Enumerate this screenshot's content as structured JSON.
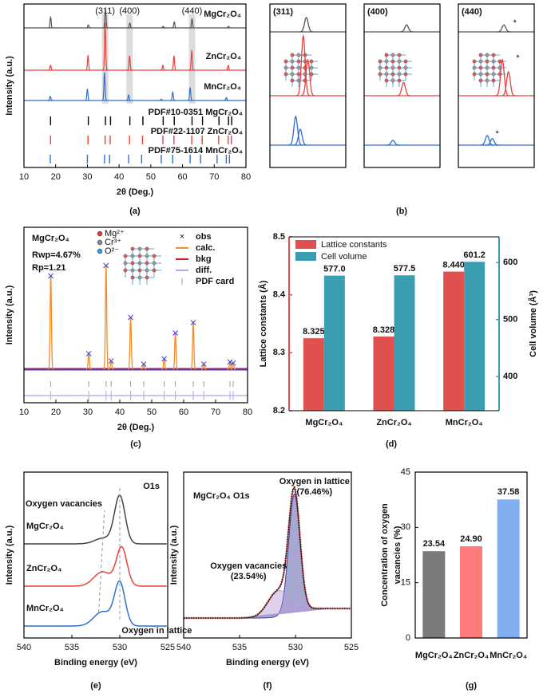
{
  "chart_data": [
    {
      "type": "xrd",
      "panel": "(a)",
      "xlabel": "2θ (Deg.)",
      "ylabel": "Intensity (a.u.)",
      "xlim": [
        10,
        80
      ],
      "xticks": [
        10,
        20,
        30,
        40,
        50,
        60,
        70,
        80
      ],
      "highlights": [
        {
          "label": "(311)",
          "x": 35.6
        },
        {
          "label": "(400)",
          "x": 43.3
        },
        {
          "label": "(440)",
          "x": 63.0
        }
      ],
      "series": [
        {
          "name": "MgCr₂O₄",
          "color": "#555555",
          "x": [
            18.4,
            30.3,
            35.7,
            43.4,
            53.9,
            57.4,
            63.0,
            74.5
          ],
          "values": [
            0.55,
            0.15,
            1,
            0.25,
            0.08,
            0.3,
            0.45,
            0.08
          ]
        },
        {
          "name": "ZnCr₂O₄",
          "color": "#e8413e",
          "x": [
            18.4,
            30.2,
            35.6,
            43.3,
            53.8,
            57.3,
            62.9,
            74.4
          ],
          "values": [
            0.1,
            0.3,
            1,
            0.3,
            0.1,
            0.3,
            0.4,
            0.1
          ]
        },
        {
          "name": "MnCr₂O₄",
          "color": "#2f6fd0",
          "x": [
            18.3,
            30.0,
            35.4,
            43.0,
            53.3,
            56.9,
            62.4,
            73.8
          ],
          "values": [
            0.15,
            0.4,
            1,
            0.2,
            0.05,
            0.3,
            0.45,
            0.1
          ]
        }
      ],
      "references": [
        {
          "name": "PDF#10-0351 MgCr₂O₄",
          "color": "#000000",
          "x": [
            18.4,
            30.3,
            35.7,
            37.3,
            43.4,
            47.5,
            53.9,
            57.4,
            63.0,
            66.3,
            71.5,
            74.5,
            75.5
          ]
        },
        {
          "name": "PDF#22-1107 ZnCr₂O₄",
          "color": "#e8413e",
          "x": [
            18.4,
            30.2,
            35.6,
            37.2,
            43.3,
            47.4,
            53.8,
            57.3,
            62.9,
            66.2,
            71.4,
            74.4,
            75.4
          ]
        },
        {
          "name": "PDF#75-1614 MnCr₂O₄",
          "color": "#2f6fd0",
          "x": [
            18.3,
            30.0,
            35.4,
            37.0,
            43.0,
            47.1,
            53.3,
            56.9,
            62.4,
            65.7,
            70.9,
            73.8,
            74.8
          ]
        }
      ]
    },
    {
      "type": "xrd-zoom",
      "panel": "(b)",
      "subplots": [
        {
          "label": "(311)",
          "xlim": [
            34.5,
            37
          ],
          "series": [
            {
              "name": "MgCr₂O₄",
              "color": "#555555",
              "x": [
                35.7
              ],
              "values": [
                0.45
              ]
            },
            {
              "name": "ZnCr₂O₄",
              "color": "#e8413e",
              "x": [
                35.6,
                35.75
              ],
              "values": [
                1,
                0.6
              ]
            },
            {
              "name": "MnCr₂O₄",
              "color": "#2f6fd0",
              "x": [
                35.35,
                35.5
              ],
              "values": [
                0.9,
                0.5
              ]
            }
          ]
        },
        {
          "label": "(400)",
          "xlim": [
            42,
            44.5
          ],
          "series": [
            {
              "name": "MgCr₂O₄",
              "color": "#555555",
              "x": [
                43.4
              ],
              "values": [
                0.22
              ]
            },
            {
              "name": "ZnCr₂O₄",
              "color": "#e8413e",
              "x": [
                43.3
              ],
              "values": [
                0.22
              ]
            },
            {
              "name": "MnCr₂O₄",
              "color": "#2f6fd0",
              "x": [
                42.95
              ],
              "values": [
                0.15
              ]
            }
          ]
        },
        {
          "label": "(440)",
          "xlim": [
            61.5,
            64
          ],
          "series": [
            {
              "name": "MgCr₂O₄",
              "color": "#555555",
              "x": [
                63.0
              ],
              "values": [
                0.22
              ],
              "note": "*",
              "note_x": 63.2
            },
            {
              "name": "ZnCr₂O₄",
              "color": "#e8413e",
              "x": [
                62.95,
                63.15
              ],
              "values": [
                0.6,
                0.4
              ],
              "note": "*",
              "note_x": 63.3
            },
            {
              "name": "MnCr₂O₄",
              "color": "#2f6fd0",
              "x": [
                62.45,
                62.62
              ],
              "values": [
                0.3,
                0.2
              ],
              "note": "*",
              "note_x": 62.62
            }
          ]
        }
      ]
    },
    {
      "type": "rietveld",
      "panel": "(c)",
      "title": "MgCr₂O₄",
      "stats": [
        "Rwp=4.67%",
        "Rp=1.21"
      ],
      "ions": [
        "Mg²⁺",
        "Cr³⁺",
        "O²⁻"
      ],
      "xlabel": "2θ (Deg.)",
      "ylabel": "Intensity (a.u.)",
      "xlim": [
        10,
        80
      ],
      "xticks": [
        10,
        20,
        30,
        40,
        50,
        60,
        70,
        80
      ],
      "x": [
        18.4,
        30.3,
        35.7,
        37.3,
        43.4,
        47.5,
        53.9,
        57.4,
        63.0,
        66.3,
        74.5,
        75.5
      ],
      "values": [
        0.9,
        0.15,
        1,
        0.08,
        0.5,
        0.05,
        0.1,
        0.35,
        0.45,
        0.05,
        0.07,
        0.06
      ],
      "legend": [
        {
          "name": "obs",
          "color": "#3b3bd8"
        },
        {
          "name": "calc.",
          "color": "#f28c28"
        },
        {
          "name": "bkg",
          "color": "#cc1f1f"
        },
        {
          "name": "diff.",
          "color": "#a9a9ee"
        },
        {
          "name": "PDF card",
          "color": "#999999"
        }
      ]
    },
    {
      "type": "bar-dual",
      "panel": "(d)",
      "categories": [
        "MgCr₂O₄",
        "ZnCr₂O₄",
        "MnCr₂O₄"
      ],
      "ylabel": "Lattice constants (Å)",
      "y2label": "Cell volume (Å³)",
      "ylim": [
        8.2,
        8.5
      ],
      "yticks": [
        8.2,
        8.3,
        8.4,
        8.5
      ],
      "y2lim": [
        340,
        645
      ],
      "y2ticks": [
        400,
        500,
        600
      ],
      "series": [
        {
          "name": "Lattice constants",
          "color": "#e0504e",
          "values": [
            8.325,
            8.328,
            8.44
          ],
          "value_labels": [
            "8.325",
            "8.328",
            "8.440"
          ]
        },
        {
          "name": "Cell volume",
          "color": "#3a9db0",
          "axis": "y2",
          "values": [
            577.0,
            577.5,
            601.2
          ],
          "value_labels": [
            "577.0",
            "577.5",
            "601.2"
          ]
        }
      ]
    },
    {
      "type": "xps",
      "panel": "(e)",
      "title": "O1s",
      "xlabel": "Binding energy (eV)",
      "ylabel": "Intensity (a.u.)",
      "xlim": [
        540,
        525
      ],
      "xticks": [
        540,
        535,
        530,
        525
      ],
      "annotations": [
        "Oxygen vacancies",
        "Oxygen in lattice"
      ],
      "series": [
        {
          "name": "MgCr₂O₄",
          "color": "#444444",
          "x": [
            530.0,
            531.7
          ],
          "values": [
            1,
            0.12
          ]
        },
        {
          "name": "ZnCr₂O₄",
          "color": "#e8413e",
          "x": [
            529.8,
            531.8
          ],
          "values": [
            0.8,
            0.3
          ]
        },
        {
          "name": "MnCr₂O₄",
          "color": "#2f6fd0",
          "x": [
            530.0,
            531.8
          ],
          "values": [
            0.9,
            0.3
          ]
        }
      ]
    },
    {
      "type": "xps-fit",
      "panel": "(f)",
      "title": "MgCr₂O₄  O1s",
      "xlabel": "Binding energy (eV)",
      "ylabel": "Intensity (a.u.)",
      "xlim": [
        540,
        525
      ],
      "xticks": [
        540,
        535,
        530,
        525
      ],
      "components": [
        {
          "name": "Oxygen in lattice (76.46%)",
          "color": "#3a3f9a",
          "x": 530.1,
          "value": 1
        },
        {
          "name": "Oxygen vacancies (23.54%)",
          "color": "#b89ad8",
          "x": 531.6,
          "value": 0.22
        }
      ]
    },
    {
      "type": "bar",
      "panel": "(g)",
      "categories": [
        "MgCr₂O₄",
        "ZnCr₂O₄",
        "MnCr₂O₄"
      ],
      "ylabel": [
        "Concentration of oxygen",
        "vacancies (%)"
      ],
      "ylim": [
        0,
        45
      ],
      "yticks": [
        0,
        15,
        30,
        45
      ],
      "values": [
        23.54,
        24.9,
        37.58
      ],
      "value_labels": [
        "23.54",
        "24.90",
        "37.58"
      ],
      "colors": [
        "#7a7a7a",
        "#ff7b7b",
        "#80aef0"
      ]
    }
  ]
}
